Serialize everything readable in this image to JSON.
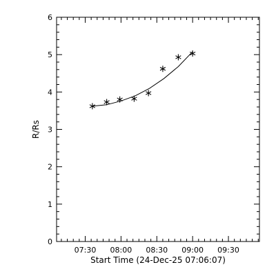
{
  "chart_data": {
    "type": "scatter",
    "title": "",
    "xlabel": "Start Time (24-Dec-25 07:06:07)",
    "ylabel": "R/Rs",
    "xlim": [
      "07:06",
      "09:56"
    ],
    "ylim": [
      0,
      6
    ],
    "x_ticks": [
      "07:30",
      "08:00",
      "08:30",
      "09:00",
      "09:30"
    ],
    "y_ticks": [
      "0",
      "1",
      "2",
      "3",
      "4",
      "5",
      "6"
    ],
    "grid": false,
    "legend": "none",
    "marker": "asterisk",
    "series": [
      {
        "x": [
          "07:36",
          "07:48",
          "07:59",
          "08:11",
          "08:23",
          "08:35",
          "08:48",
          "09:00"
        ],
        "y": [
          3.62,
          3.73,
          3.8,
          3.82,
          3.97,
          4.62,
          4.93,
          5.03
        ]
      }
    ],
    "fit": {
      "x": [
        "07:36",
        "07:48",
        "08:00",
        "08:12",
        "08:24",
        "08:36",
        "08:48",
        "09:00"
      ],
      "y": [
        3.62,
        3.66,
        3.76,
        3.9,
        4.1,
        4.36,
        4.68,
        5.08
      ]
    },
    "colors": {
      "axes": "#000000",
      "background": "#ffffff"
    }
  }
}
